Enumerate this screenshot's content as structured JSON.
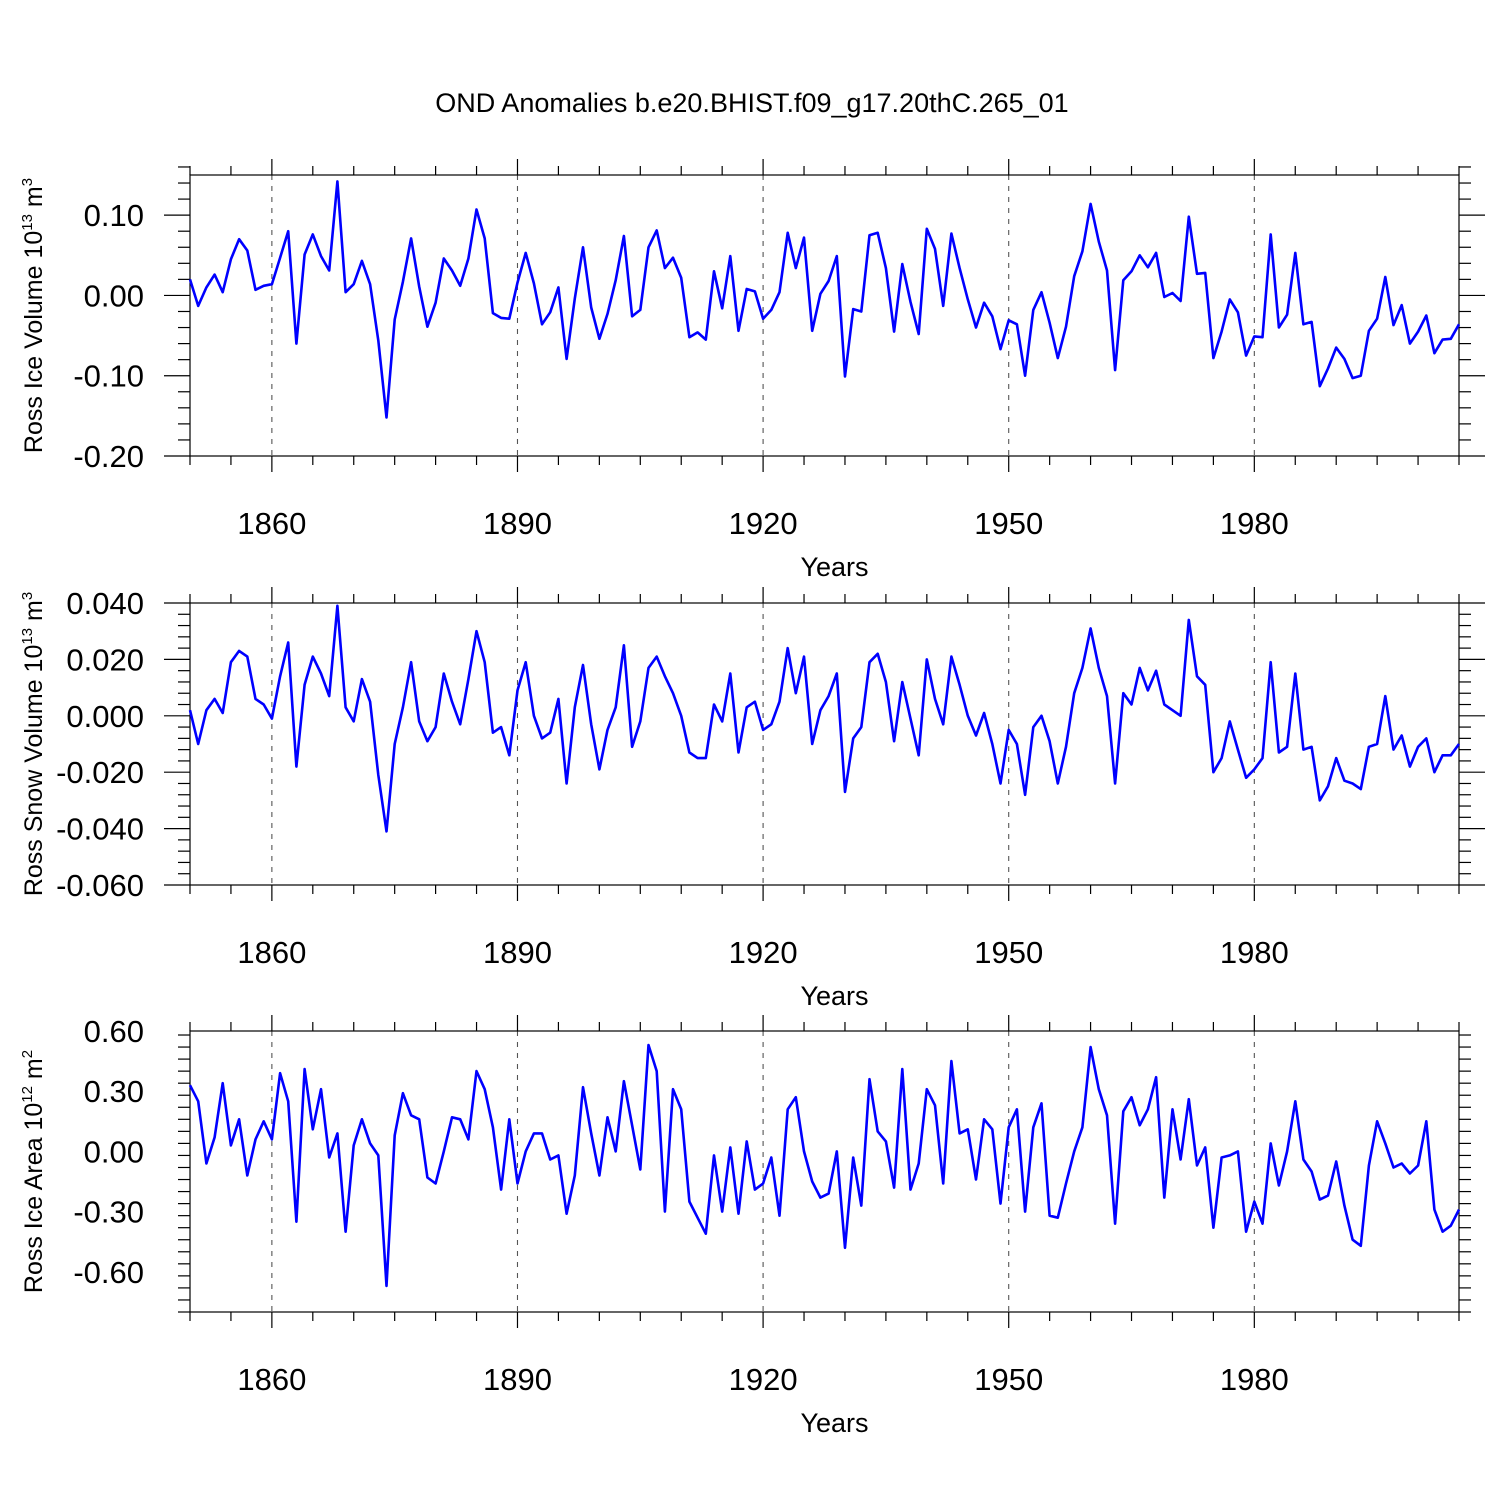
{
  "figure_title": "OND Anomalies b.e20.BHIST.f09_g17.20thC.265_01",
  "chart_data": [
    {
      "type": "line",
      "title": "OND Anomalies b.e20.BHIST.f09_g17.20thC.265_01",
      "xlabel": "Years",
      "ylabel": {
        "base": "Ross Ice Volume 10",
        "exponent": "13",
        "unit": " m",
        "unit_exponent": "3"
      },
      "xlim": [
        1850,
        2005
      ],
      "ylim": [
        -0.2,
        0.15
      ],
      "x_ticks": [
        1860,
        1890,
        1920,
        1950,
        1980
      ],
      "x_tick_labels": [
        "1860",
        "1890",
        "1920",
        "1950",
        "1980"
      ],
      "y_ticks": [
        -0.2,
        -0.1,
        0.0,
        0.1
      ],
      "y_tick_labels": [
        "-0.20",
        "-0.10",
        "0.00",
        "0.10"
      ],
      "grid": "dashed vertical lines at labeled years",
      "series": [
        {
          "name": "Ross Ice Volume",
          "color": "#0000ff",
          "x_start": 1850,
          "x_step": 1,
          "values": [
            0.02,
            -0.013,
            0.01,
            0.026,
            0.004,
            0.045,
            0.07,
            0.056,
            0.007,
            0.012,
            0.014,
            0.047,
            0.08,
            -0.06,
            0.051,
            0.076,
            0.049,
            0.031,
            0.142,
            0.004,
            0.014,
            0.043,
            0.014,
            -0.056,
            -0.152,
            -0.03,
            0.017,
            0.071,
            0.011,
            -0.039,
            -0.009,
            0.046,
            0.031,
            0.012,
            0.046,
            0.107,
            0.071,
            -0.022,
            -0.028,
            -0.029,
            0.016,
            0.053,
            0.015,
            -0.036,
            -0.021,
            0.01,
            -0.079,
            -0.004,
            0.06,
            -0.015,
            -0.054,
            -0.023,
            0.019,
            0.074,
            -0.026,
            -0.018,
            0.06,
            0.081,
            0.034,
            0.047,
            0.022,
            -0.052,
            -0.046,
            -0.055,
            0.03,
            -0.016,
            0.049,
            -0.044,
            0.008,
            0.005,
            -0.029,
            -0.018,
            0.004,
            0.078,
            0.034,
            0.072,
            -0.044,
            0.002,
            0.018,
            0.049,
            -0.101,
            -0.017,
            -0.02,
            0.075,
            0.078,
            0.034,
            -0.045,
            0.039,
            -0.008,
            -0.048,
            0.083,
            0.058,
            -0.013,
            0.077,
            0.034,
            -0.005,
            -0.04,
            -0.009,
            -0.026,
            -0.067,
            -0.031,
            -0.036,
            -0.1,
            -0.018,
            0.004,
            -0.034,
            -0.078,
            -0.039,
            0.024,
            0.055,
            0.114,
            0.067,
            0.031,
            -0.093,
            0.019,
            0.03,
            0.05,
            0.035,
            0.053,
            -0.002,
            0.003,
            -0.007,
            0.098,
            0.027,
            0.028,
            -0.078,
            -0.045,
            -0.005,
            -0.021,
            -0.075,
            -0.051,
            -0.052,
            0.076,
            -0.04,
            -0.024,
            0.053,
            -0.036,
            -0.033,
            -0.113,
            -0.091,
            -0.065,
            -0.079,
            -0.103,
            -0.1,
            -0.044,
            -0.029,
            0.023,
            -0.037,
            -0.012,
            -0.06,
            -0.045,
            -0.025,
            -0.072,
            -0.055,
            -0.054,
            -0.036
          ]
        }
      ]
    },
    {
      "type": "line",
      "title": "",
      "xlabel": "Years",
      "ylabel": {
        "base": "Ross Snow Volume 10",
        "exponent": "13",
        "unit": " m",
        "unit_exponent": "3"
      },
      "xlim": [
        1850,
        2005
      ],
      "ylim": [
        -0.06,
        0.04
      ],
      "x_ticks": [
        1860,
        1890,
        1920,
        1950,
        1980
      ],
      "x_tick_labels": [
        "1860",
        "1890",
        "1920",
        "1950",
        "1980"
      ],
      "y_ticks": [
        -0.06,
        -0.04,
        -0.02,
        0.0,
        0.02,
        0.04
      ],
      "y_tick_labels": [
        "-0.060",
        "-0.040",
        "-0.020",
        "0.000",
        "0.020",
        "0.040"
      ],
      "grid": "dashed vertical lines at labeled years",
      "series": [
        {
          "name": "Ross Snow Volume",
          "color": "#0000ff",
          "x_start": 1850,
          "x_step": 1,
          "values": [
            0.002,
            -0.01,
            0.002,
            0.006,
            0.001,
            0.019,
            0.023,
            0.021,
            0.006,
            0.004,
            -0.001,
            0.014,
            0.026,
            -0.018,
            0.011,
            0.021,
            0.015,
            0.007,
            0.039,
            0.003,
            -0.002,
            0.013,
            0.005,
            -0.021,
            -0.041,
            -0.01,
            0.003,
            0.019,
            -0.002,
            -0.009,
            -0.004,
            0.015,
            0.005,
            -0.003,
            0.013,
            0.03,
            0.019,
            -0.006,
            -0.004,
            -0.014,
            0.009,
            0.019,
            0.0,
            -0.008,
            -0.006,
            0.006,
            -0.024,
            0.003,
            0.018,
            -0.003,
            -0.019,
            -0.005,
            0.003,
            0.025,
            -0.011,
            -0.002,
            0.017,
            0.021,
            0.014,
            0.008,
            0.0,
            -0.013,
            -0.015,
            -0.015,
            0.004,
            -0.002,
            0.015,
            -0.013,
            0.003,
            0.005,
            -0.005,
            -0.003,
            0.005,
            0.024,
            0.008,
            0.021,
            -0.01,
            0.002,
            0.007,
            0.015,
            -0.027,
            -0.008,
            -0.004,
            0.019,
            0.022,
            0.012,
            -0.009,
            0.012,
            -0.001,
            -0.014,
            0.02,
            0.006,
            -0.003,
            0.021,
            0.011,
            0.0,
            -0.007,
            0.001,
            -0.01,
            -0.024,
            -0.005,
            -0.01,
            -0.028,
            -0.004,
            0.0,
            -0.009,
            -0.024,
            -0.011,
            0.008,
            0.017,
            0.031,
            0.017,
            0.007,
            -0.024,
            0.008,
            0.004,
            0.017,
            0.009,
            0.016,
            0.004,
            0.002,
            0.0,
            0.034,
            0.014,
            0.011,
            -0.02,
            -0.015,
            -0.002,
            -0.012,
            -0.022,
            -0.019,
            -0.015,
            0.019,
            -0.013,
            -0.011,
            0.015,
            -0.012,
            -0.011,
            -0.03,
            -0.025,
            -0.015,
            -0.023,
            -0.024,
            -0.026,
            -0.011,
            -0.01,
            0.007,
            -0.012,
            -0.007,
            -0.018,
            -0.011,
            -0.008,
            -0.02,
            -0.014,
            -0.014,
            -0.01
          ]
        }
      ]
    },
    {
      "type": "line",
      "title": "",
      "xlabel": "Years",
      "ylabel": {
        "base": "Ross Ice Area 10",
        "exponent": "12",
        "unit": " m",
        "unit_exponent": "2"
      },
      "xlim": [
        1850,
        2005
      ],
      "ylim": [
        -0.8,
        0.6
      ],
      "x_ticks": [
        1860,
        1890,
        1920,
        1950,
        1980
      ],
      "x_tick_labels": [
        "1860",
        "1890",
        "1920",
        "1950",
        "1980"
      ],
      "y_ticks": [
        -0.6,
        -0.3,
        0.0,
        0.3,
        0.6
      ],
      "y_tick_labels": [
        "-0.60",
        "-0.30",
        "0.00",
        "0.30",
        "0.60"
      ],
      "grid": "dashed vertical lines at labeled years",
      "series": [
        {
          "name": "Ross Ice Area",
          "color": "#0000ff",
          "x_start": 1850,
          "x_step": 1,
          "values": [
            0.33,
            0.25,
            -0.06,
            0.07,
            0.34,
            0.03,
            0.16,
            -0.12,
            0.06,
            0.15,
            0.06,
            0.39,
            0.25,
            -0.35,
            0.41,
            0.11,
            0.31,
            -0.03,
            0.09,
            -0.4,
            0.03,
            0.16,
            0.04,
            -0.02,
            -0.67,
            0.08,
            0.29,
            0.18,
            0.16,
            -0.13,
            -0.16,
            0.0,
            0.17,
            0.16,
            0.06,
            0.4,
            0.31,
            0.12,
            -0.19,
            0.16,
            -0.16,
            0.0,
            0.09,
            0.09,
            -0.04,
            -0.02,
            -0.31,
            -0.12,
            0.32,
            0.09,
            -0.12,
            0.17,
            0.0,
            0.35,
            0.13,
            -0.09,
            0.53,
            0.4,
            -0.3,
            0.31,
            0.21,
            -0.25,
            -0.33,
            -0.41,
            -0.02,
            -0.3,
            0.02,
            -0.31,
            0.05,
            -0.19,
            -0.16,
            -0.03,
            -0.32,
            0.21,
            0.27,
            0.0,
            -0.15,
            -0.23,
            -0.21,
            0.0,
            -0.48,
            -0.03,
            -0.27,
            0.36,
            0.1,
            0.05,
            -0.18,
            0.41,
            -0.19,
            -0.06,
            0.31,
            0.23,
            -0.16,
            0.45,
            0.09,
            0.11,
            -0.14,
            0.16,
            0.11,
            -0.26,
            0.12,
            0.21,
            -0.3,
            0.12,
            0.24,
            -0.32,
            -0.33,
            -0.16,
            0.0,
            0.12,
            0.52,
            0.31,
            0.18,
            -0.36,
            0.2,
            0.27,
            0.13,
            0.21,
            0.37,
            -0.23,
            0.21,
            -0.04,
            0.26,
            -0.07,
            0.02,
            -0.38,
            -0.03,
            -0.02,
            0.0,
            -0.4,
            -0.25,
            -0.36,
            0.04,
            -0.17,
            0.0,
            0.25,
            -0.04,
            -0.1,
            -0.24,
            -0.22,
            -0.05,
            -0.27,
            -0.44,
            -0.47,
            -0.07,
            0.15,
            0.04,
            -0.08,
            -0.06,
            -0.11,
            -0.07,
            0.15,
            -0.29,
            -0.4,
            -0.37,
            -0.29
          ]
        }
      ]
    }
  ]
}
